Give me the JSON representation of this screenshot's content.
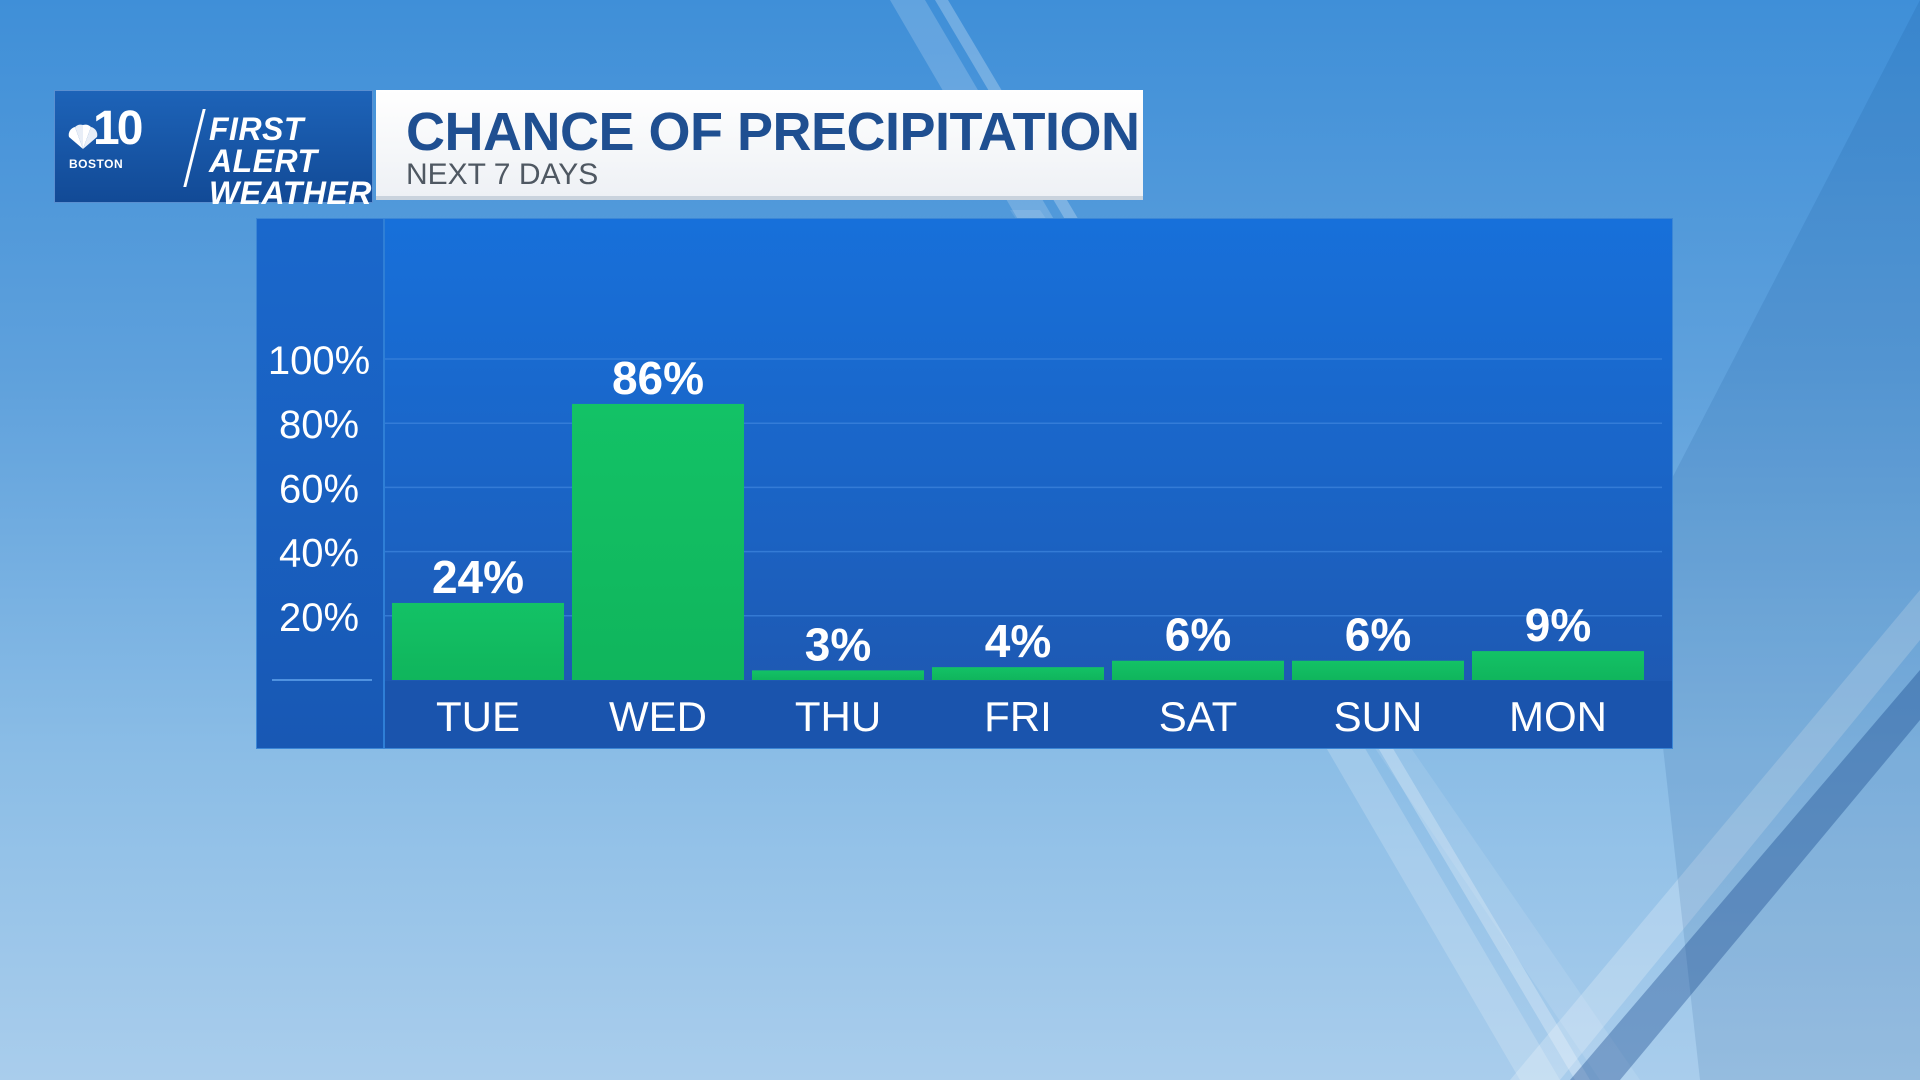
{
  "logo": {
    "channel": "10",
    "city": "BOSTON",
    "brand_line1": "FIRST ALERT",
    "brand_line2": "WEATHER"
  },
  "header": {
    "title": "CHANCE OF PRECIPITATION",
    "subtitle": "NEXT 7 DAYS"
  },
  "colors": {
    "bar": "#10b55c",
    "bar_top": "#13c266",
    "title": "#1f4f91"
  },
  "chart_data": {
    "type": "bar",
    "title": "CHANCE OF PRECIPITATION",
    "subtitle": "NEXT 7 DAYS",
    "categories": [
      "TUE",
      "WED",
      "THU",
      "FRI",
      "SAT",
      "SUN",
      "MON"
    ],
    "values": [
      24,
      86,
      3,
      4,
      6,
      6,
      9
    ],
    "value_labels": [
      "24%",
      "86%",
      "3%",
      "4%",
      "6%",
      "6%",
      "9%"
    ],
    "yticks": [
      20,
      40,
      60,
      80,
      100
    ],
    "ytick_labels": [
      "20%",
      "40%",
      "60%",
      "80%",
      "100%"
    ],
    "ylim": [
      0,
      100
    ],
    "xlabel": "",
    "ylabel": "",
    "grid": true
  }
}
